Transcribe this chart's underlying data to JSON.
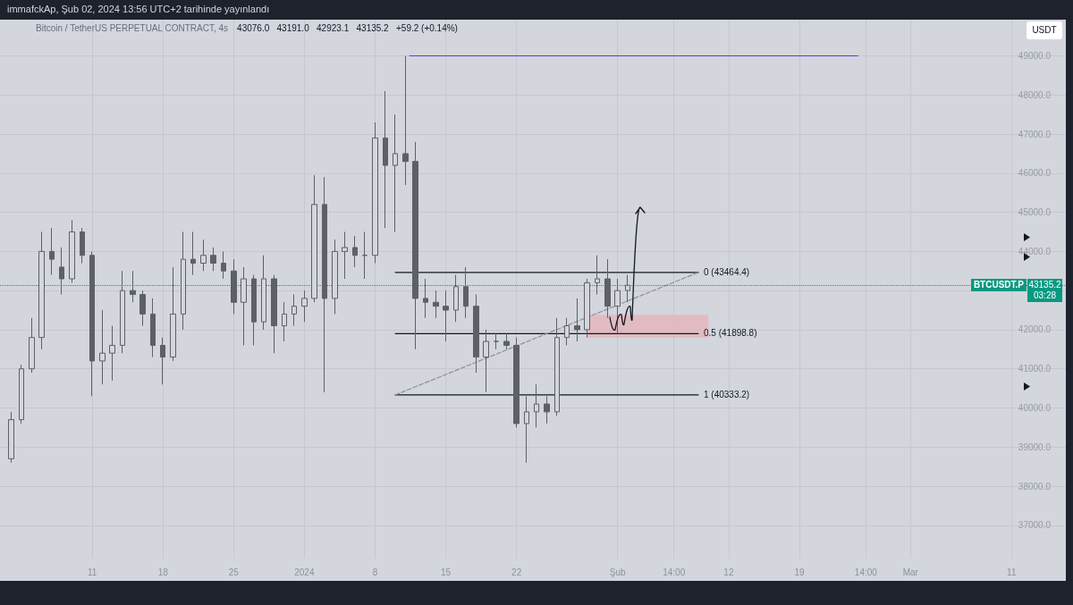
{
  "chart_data": {
    "type": "candlestick",
    "title": "immafckAp, Şub 02, 2024 13:56 UTC+2 tarihinde yayınlandı",
    "subtitle": "Bitcoin / TetherUS PERPETUAL CONTRACT, 4s",
    "annotations": [
      "43076.0   43191.0   42923.1   43135.2   +59.2 (+0.14%)",
      "USDT",
      "43135.2",
      "03:28",
      {
        "text": "0 (43464.4)",
        "x": "2024-02-09",
        "y": 43464.4
      },
      {
        "text": "0.5 (41898.8)",
        "x": "2024-02-09",
        "y": 41898.8
      },
      {
        "text": "1 (40333.2)",
        "x": "2024-02-09",
        "y": 40333.2
      }
    ],
    "series": [
      {
        "color": "#5d6068",
        "x": [
          "2023-12-03",
          "2023-12-04",
          "2023-12-05",
          "2023-12-06",
          "2023-12-07",
          "2023-12-08",
          "2023-12-09",
          "2023-12-10",
          "2023-12-11",
          "2023-12-12",
          "2023-12-13",
          "2023-12-14",
          "2023-12-15",
          "2023-12-16",
          "2023-12-17",
          "2023-12-18",
          "2023-12-19",
          "2023-12-20",
          "2023-12-21",
          "2023-12-22",
          "2023-12-23",
          "2023-12-24",
          "2023-12-25",
          "2023-12-26",
          "2023-12-27",
          "2023-12-28",
          "2023-12-29",
          "2023-12-30",
          "2023-12-31",
          "2024-01-01",
          "2024-01-02",
          "2024-01-03",
          "2024-01-04",
          "2024-01-05",
          "2024-01-06",
          "2024-01-07",
          "2024-01-08",
          "2024-01-09",
          "2024-01-10",
          "2024-01-11",
          "2024-01-12",
          "2024-01-13",
          "2024-01-14",
          "2024-01-15",
          "2024-01-16",
          "2024-01-17",
          "2024-01-18",
          "2024-01-19",
          "2024-01-20",
          "2024-01-21",
          "2024-01-22",
          "2024-01-23",
          "2024-01-24",
          "2024-01-25",
          "2024-01-26",
          "2024-01-27",
          "2024-01-28",
          "2024-01-29",
          "2024-01-30",
          "2024-01-31",
          "2024-02-01",
          "2024-02-02"
        ],
        "ohlc": [
          [
            38700,
            39900,
            38600,
            39700
          ],
          [
            39700,
            41100,
            39600,
            41000
          ],
          [
            41000,
            42300,
            40900,
            41800
          ],
          [
            41800,
            44500,
            41500,
            44000
          ],
          [
            44000,
            44600,
            43400,
            43800
          ],
          [
            43600,
            44100,
            42900,
            43300
          ],
          [
            43300,
            44800,
            43200,
            44500
          ],
          [
            44500,
            44600,
            43700,
            43900
          ],
          [
            43900,
            44000,
            40300,
            41200
          ],
          [
            41200,
            42500,
            40600,
            41400
          ],
          [
            41400,
            42100,
            40700,
            41600
          ],
          [
            41600,
            43500,
            41400,
            43000
          ],
          [
            43000,
            43500,
            42700,
            42900
          ],
          [
            42900,
            43000,
            42100,
            42400
          ],
          [
            42400,
            42800,
            41300,
            41600
          ],
          [
            41600,
            41800,
            40600,
            41300
          ],
          [
            41300,
            43600,
            41200,
            42400
          ],
          [
            42400,
            44500,
            42000,
            43800
          ],
          [
            43800,
            44500,
            43400,
            43700
          ],
          [
            43700,
            44300,
            43500,
            43900
          ],
          [
            43900,
            44100,
            43500,
            43700
          ],
          [
            43700,
            44000,
            43300,
            43500
          ],
          [
            43500,
            43800,
            42400,
            42700
          ],
          [
            42700,
            43600,
            41600,
            43300
          ],
          [
            43300,
            43400,
            41600,
            42200
          ],
          [
            42200,
            43900,
            42000,
            43300
          ],
          [
            43300,
            43400,
            41400,
            42100
          ],
          [
            42100,
            42700,
            41700,
            42400
          ],
          [
            42400,
            42900,
            42100,
            42600
          ],
          [
            42600,
            43000,
            42200,
            42800
          ],
          [
            42800,
            45950,
            42700,
            45200
          ],
          [
            45200,
            45900,
            40400,
            42800
          ],
          [
            42800,
            44300,
            42400,
            44000
          ],
          [
            44000,
            44500,
            43300,
            44100
          ],
          [
            44100,
            44400,
            43600,
            43900
          ],
          [
            43900,
            44500,
            43300,
            43900
          ],
          [
            43900,
            47300,
            43700,
            46900
          ],
          [
            46900,
            48100,
            44600,
            46200
          ],
          [
            46200,
            47500,
            44500,
            46500
          ],
          [
            46500,
            49000,
            45700,
            46300
          ],
          [
            46300,
            46800,
            41500,
            42800
          ],
          [
            42800,
            43300,
            42300,
            42700
          ],
          [
            42700,
            43000,
            42300,
            42600
          ],
          [
            42600,
            43000,
            41700,
            42500
          ],
          [
            42500,
            43400,
            42200,
            43100
          ],
          [
            43100,
            43600,
            42300,
            42600
          ],
          [
            42600,
            42900,
            40900,
            41300
          ],
          [
            41300,
            42000,
            40400,
            41700
          ],
          [
            41700,
            41900,
            41500,
            41700
          ],
          [
            41700,
            41900,
            41500,
            41600
          ],
          [
            41600,
            41800,
            39500,
            39600
          ],
          [
            39600,
            40300,
            38600,
            39900
          ],
          [
            39900,
            40600,
            39500,
            40100
          ],
          [
            40100,
            40300,
            39600,
            39900
          ],
          [
            39900,
            42300,
            39800,
            41800
          ],
          [
            41800,
            42300,
            41600,
            42100
          ],
          [
            42100,
            42800,
            41700,
            42000
          ],
          [
            42000,
            43300,
            41800,
            43200
          ],
          [
            43200,
            43900,
            42900,
            43300
          ],
          [
            43300,
            43800,
            42300,
            42600
          ],
          [
            42600,
            43300,
            41900,
            43000
          ],
          [
            43000,
            43400,
            42700,
            43135.2
          ]
        ]
      },
      {
        "type": "line",
        "color": "#e6b4bb",
        "x": [
          "2024-01-29",
          "2024-02-10"
        ],
        "values": [
          null,
          null
        ],
        "lower": [
          41800,
          41800
        ],
        "upper": [
          42380,
          42380
        ]
      },
      {
        "type": "line",
        "color": "#131722",
        "x": [
          "2024-01-10",
          "2024-02-09"
        ],
        "values": [
          43464.4,
          43464.4
        ]
      },
      {
        "type": "line",
        "color": "#131722",
        "x": [
          "2024-01-10",
          "2024-02-09"
        ],
        "values": [
          41898.8,
          41898.8
        ]
      },
      {
        "type": "line",
        "color": "#131722",
        "x": [
          "2024-01-10",
          "2024-02-09"
        ],
        "values": [
          40333.2,
          40333.2
        ]
      },
      {
        "type": "line",
        "color": "#8c8f96",
        "line_style": "dashed",
        "x": [
          "2024-01-10",
          "2024-02-09"
        ],
        "values": [
          40333.2,
          43464.4
        ]
      },
      {
        "type": "line",
        "color": "#5e3bd0",
        "x": [
          "2024-01-11T10:00",
          "2024-02-24T19:00"
        ],
        "values": [
          49000,
          49000
        ]
      }
    ],
    "ref_lines": [
      {
        "axis": "y",
        "value": 43135.2,
        "label": "BTCUSDT.P",
        "color": "#089981",
        "line_style": "dotted"
      }
    ],
    "xlim": [
      "2023-12-01T21:00",
      "2024-03-16T09:00"
    ],
    "xticks": [
      {
        "value": "2023-12-11",
        "label": "11"
      },
      {
        "value": "2023-12-18",
        "label": "18"
      },
      {
        "value": "2023-12-25",
        "label": "25"
      },
      {
        "value": "2024-01-01",
        "label": "2024"
      },
      {
        "value": "2024-01-08",
        "label": "8"
      },
      {
        "value": "2024-01-15",
        "label": "15"
      },
      {
        "value": "2024-01-22",
        "label": "22"
      },
      {
        "value": "2024-02-01",
        "label": "Şub"
      },
      {
        "value": "2024-02-06T14:00",
        "label": "14:00"
      },
      {
        "value": "2024-02-12",
        "label": "12"
      },
      {
        "value": "2024-02-19",
        "label": "19"
      },
      {
        "value": "2024-02-25T14:00",
        "label": "14:00"
      },
      {
        "value": "2024-03-01",
        "label": "Mar"
      },
      {
        "value": "2024-03-11",
        "label": "11"
      }
    ],
    "ylim": [
      36150,
      49925
    ],
    "yticks": [
      {
        "value": 37000,
        "label": "37000.0"
      },
      {
        "value": 38000,
        "label": "38000.0"
      },
      {
        "value": 39000,
        "label": "39000.0"
      },
      {
        "value": 40000,
        "label": "40000.0"
      },
      {
        "value": 41000,
        "label": "41000.0"
      },
      {
        "value": 42000,
        "label": "42000.0"
      },
      {
        "value": 43000,
        "label": null
      },
      {
        "value": 44000,
        "label": "44000.0"
      },
      {
        "value": 45000,
        "label": "45000.0"
      },
      {
        "value": 46000,
        "label": "46000.0"
      },
      {
        "value": 47000,
        "label": "47000.0"
      },
      {
        "value": 48000,
        "label": "48000.0"
      },
      {
        "value": 49000,
        "label": "49000.0"
      }
    ],
    "grid": true
  }
}
